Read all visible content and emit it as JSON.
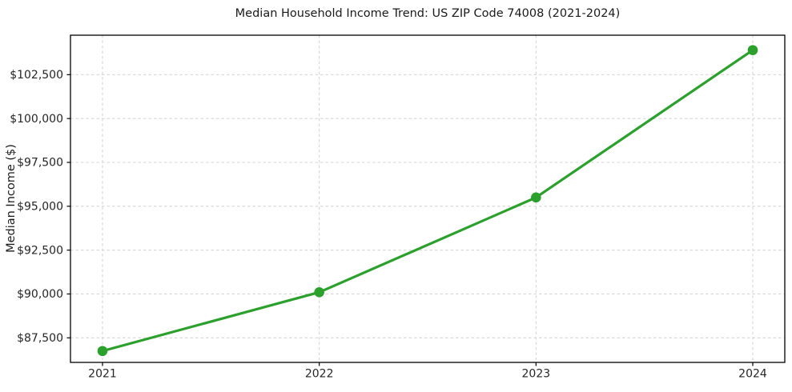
{
  "chart_data": {
    "type": "line",
    "title": "Median Household Income Trend: US ZIP Code 74008 (2021-2024)",
    "xlabel": "",
    "ylabel": "Median Income ($)",
    "categories": [
      "2021",
      "2022",
      "2023",
      "2024"
    ],
    "series": [
      {
        "name": "Median Household Income",
        "values": [
          86750,
          90100,
          95500,
          103900
        ]
      }
    ],
    "ylim": [
      86100,
      104750
    ],
    "yticks": [
      87500,
      90000,
      92500,
      95000,
      97500,
      100000,
      102500
    ],
    "ytick_labels": [
      "$87,500",
      "$90,000",
      "$92,500",
      "$95,000",
      "$97,500",
      "$100,000",
      "$102,500"
    ],
    "grid": true,
    "grid_style": "dashed",
    "legend_position": "none",
    "marker": "circle",
    "colors": {
      "line": "#2ca02c",
      "marker": "#2ca02c",
      "grid": "#d6d6d6",
      "spine": "#000000",
      "tick_text": "#262626",
      "title_text": "#1a1a1a",
      "background": "#ffffff"
    }
  }
}
